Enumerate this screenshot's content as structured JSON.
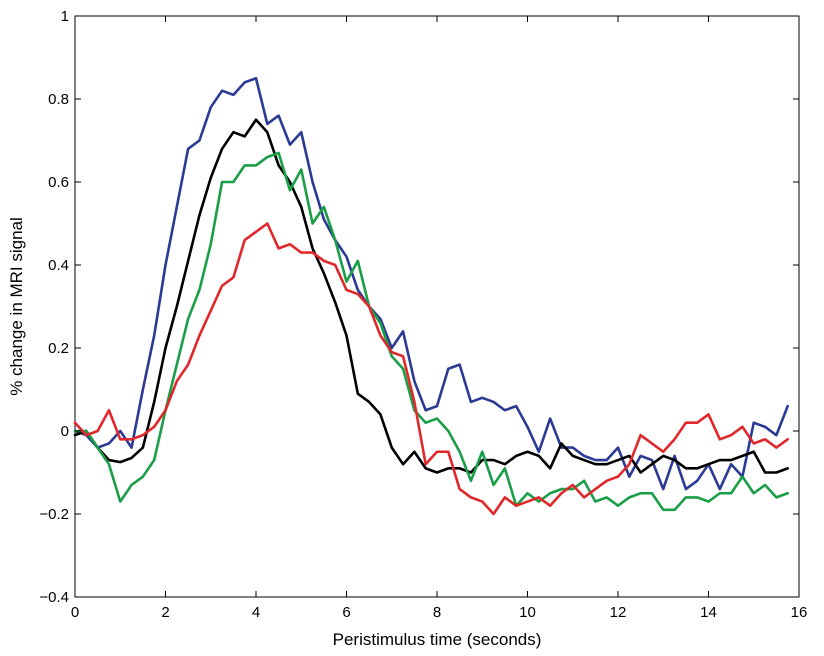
{
  "chart_data": {
    "type": "line",
    "title": "",
    "xlabel": "Peristimulus time (seconds)",
    "ylabel": "% change in MRI signal",
    "xlim": [
      0,
      16
    ],
    "ylim": [
      -0.4,
      1
    ],
    "xticks": [
      0,
      2,
      4,
      6,
      8,
      10,
      12,
      14,
      16
    ],
    "yticks": [
      -0.4,
      -0.2,
      0,
      0.2,
      0.4,
      0.6,
      0.8,
      1
    ],
    "ytick_labels": [
      "−0.4",
      "−0.2",
      "0",
      "0.2",
      "0.4",
      "0.6",
      "0.8",
      "1"
    ],
    "xtick_labels": [
      "0",
      "2",
      "4",
      "6",
      "8",
      "10",
      "12",
      "14",
      "16"
    ],
    "grid": false,
    "legend": "none",
    "series": [
      {
        "color": "#2b3a94",
        "x": [
          0.0,
          0.25,
          0.5,
          0.75,
          1.0,
          1.25,
          1.5,
          1.75,
          2.0,
          2.25,
          2.5,
          2.75,
          3.0,
          3.25,
          3.5,
          3.75,
          4.0,
          4.25,
          4.5,
          4.75,
          5.0,
          5.25,
          5.5,
          5.75,
          6.0,
          6.25,
          6.5,
          6.75,
          7.0,
          7.25,
          7.5,
          7.75,
          8.0,
          8.25,
          8.5,
          8.75,
          9.0,
          9.25,
          9.5,
          9.75,
          10.0,
          10.25,
          10.5,
          10.75,
          11.0,
          11.25,
          11.5,
          11.75,
          12.0,
          12.25,
          12.5,
          12.75,
          13.0,
          13.25,
          13.5,
          13.75,
          14.0,
          14.25,
          14.5,
          14.75,
          15.0,
          15.25,
          15.5,
          15.75
        ],
        "y": [
          0.0,
          -0.01,
          -0.04,
          -0.03,
          0.0,
          -0.04,
          0.1,
          0.23,
          0.4,
          0.54,
          0.68,
          0.7,
          0.78,
          0.82,
          0.81,
          0.84,
          0.85,
          0.74,
          0.76,
          0.69,
          0.72,
          0.6,
          0.51,
          0.46,
          0.42,
          0.34,
          0.3,
          0.27,
          0.2,
          0.24,
          0.12,
          0.05,
          0.06,
          0.15,
          0.16,
          0.07,
          0.08,
          0.07,
          0.05,
          0.06,
          0.01,
          -0.05,
          0.03,
          -0.04,
          -0.04,
          -0.06,
          -0.07,
          -0.07,
          -0.04,
          -0.11,
          -0.06,
          -0.07,
          -0.14,
          -0.06,
          -0.14,
          -0.12,
          -0.08,
          -0.14,
          -0.08,
          -0.11,
          0.02,
          0.01,
          -0.01,
          0.06
        ]
      },
      {
        "color": "#000000",
        "x": [
          0.0,
          0.25,
          0.5,
          0.75,
          1.0,
          1.25,
          1.5,
          1.75,
          2.0,
          2.25,
          2.5,
          2.75,
          3.0,
          3.25,
          3.5,
          3.75,
          4.0,
          4.25,
          4.5,
          4.75,
          5.0,
          5.25,
          5.5,
          5.75,
          6.0,
          6.25,
          6.5,
          6.75,
          7.0,
          7.25,
          7.5,
          7.75,
          8.0,
          8.25,
          8.5,
          8.75,
          9.0,
          9.25,
          9.5,
          9.75,
          10.0,
          10.25,
          10.5,
          10.75,
          11.0,
          11.25,
          11.5,
          11.75,
          12.0,
          12.25,
          12.5,
          12.75,
          13.0,
          13.25,
          13.5,
          13.75,
          14.0,
          14.25,
          14.5,
          14.75,
          15.0,
          15.25,
          15.5,
          15.75
        ],
        "y": [
          -0.01,
          0.0,
          -0.04,
          -0.07,
          -0.075,
          -0.065,
          -0.04,
          0.07,
          0.2,
          0.3,
          0.41,
          0.52,
          0.61,
          0.68,
          0.72,
          0.71,
          0.75,
          0.72,
          0.64,
          0.6,
          0.54,
          0.44,
          0.38,
          0.31,
          0.23,
          0.09,
          0.07,
          0.04,
          -0.04,
          -0.08,
          -0.05,
          -0.09,
          -0.1,
          -0.09,
          -0.09,
          -0.1,
          -0.07,
          -0.07,
          -0.08,
          -0.06,
          -0.05,
          -0.06,
          -0.09,
          -0.03,
          -0.06,
          -0.07,
          -0.08,
          -0.08,
          -0.07,
          -0.06,
          -0.1,
          -0.08,
          -0.06,
          -0.07,
          -0.09,
          -0.09,
          -0.08,
          -0.07,
          -0.07,
          -0.06,
          -0.05,
          -0.1,
          -0.1,
          -0.09
        ]
      },
      {
        "color": "#1a9e47",
        "x": [
          0.0,
          0.25,
          0.5,
          0.75,
          1.0,
          1.25,
          1.5,
          1.75,
          2.0,
          2.25,
          2.5,
          2.75,
          3.0,
          3.25,
          3.5,
          3.75,
          4.0,
          4.25,
          4.5,
          4.75,
          5.0,
          5.25,
          5.5,
          5.75,
          6.0,
          6.25,
          6.5,
          6.75,
          7.0,
          7.25,
          7.5,
          7.75,
          8.0,
          8.25,
          8.5,
          8.75,
          9.0,
          9.25,
          9.5,
          9.75,
          10.0,
          10.25,
          10.5,
          10.75,
          11.0,
          11.25,
          11.5,
          11.75,
          12.0,
          12.25,
          12.5,
          12.75,
          13.0,
          13.25,
          13.5,
          13.75,
          14.0,
          14.25,
          14.5,
          14.75,
          15.0,
          15.25,
          15.5,
          15.75
        ],
        "y": [
          0.0,
          0.0,
          -0.04,
          -0.08,
          -0.17,
          -0.13,
          -0.11,
          -0.07,
          0.05,
          0.16,
          0.27,
          0.34,
          0.45,
          0.6,
          0.6,
          0.64,
          0.64,
          0.66,
          0.67,
          0.58,
          0.63,
          0.5,
          0.54,
          0.46,
          0.36,
          0.41,
          0.3,
          0.26,
          0.18,
          0.15,
          0.05,
          0.02,
          0.03,
          0.0,
          -0.05,
          -0.12,
          -0.05,
          -0.13,
          -0.09,
          -0.18,
          -0.15,
          -0.17,
          -0.15,
          -0.14,
          -0.14,
          -0.12,
          -0.17,
          -0.16,
          -0.18,
          -0.16,
          -0.15,
          -0.15,
          -0.19,
          -0.19,
          -0.16,
          -0.16,
          -0.17,
          -0.15,
          -0.15,
          -0.11,
          -0.15,
          -0.13,
          -0.16,
          -0.15
        ]
      },
      {
        "color": "#e0282a",
        "x": [
          0.0,
          0.25,
          0.5,
          0.75,
          1.0,
          1.25,
          1.5,
          1.75,
          2.0,
          2.25,
          2.5,
          2.75,
          3.0,
          3.25,
          3.5,
          3.75,
          4.0,
          4.25,
          4.5,
          4.75,
          5.0,
          5.25,
          5.5,
          5.75,
          6.0,
          6.25,
          6.5,
          6.75,
          7.0,
          7.25,
          7.5,
          7.75,
          8.0,
          8.25,
          8.5,
          8.75,
          9.0,
          9.25,
          9.5,
          9.75,
          10.0,
          10.25,
          10.5,
          10.75,
          11.0,
          11.25,
          11.5,
          11.75,
          12.0,
          12.25,
          12.5,
          12.75,
          13.0,
          13.25,
          13.5,
          13.75,
          14.0,
          14.25,
          14.5,
          14.75,
          15.0,
          15.25,
          15.5,
          15.75
        ],
        "y": [
          0.02,
          -0.01,
          0.0,
          0.05,
          -0.02,
          -0.02,
          -0.01,
          0.01,
          0.05,
          0.12,
          0.16,
          0.23,
          0.29,
          0.35,
          0.37,
          0.46,
          0.48,
          0.5,
          0.44,
          0.45,
          0.43,
          0.43,
          0.41,
          0.4,
          0.34,
          0.33,
          0.3,
          0.23,
          0.19,
          0.18,
          0.07,
          -0.08,
          -0.05,
          -0.05,
          -0.14,
          -0.16,
          -0.17,
          -0.2,
          -0.16,
          -0.18,
          -0.17,
          -0.16,
          -0.18,
          -0.15,
          -0.13,
          -0.16,
          -0.14,
          -0.12,
          -0.11,
          -0.08,
          -0.01,
          -0.03,
          -0.05,
          -0.02,
          0.02,
          0.02,
          0.04,
          -0.02,
          -0.01,
          0.01,
          -0.03,
          -0.02,
          -0.04,
          -0.02
        ]
      }
    ]
  }
}
